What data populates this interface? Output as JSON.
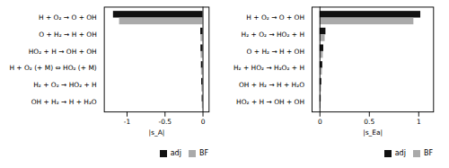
{
  "chart_data": [
    {
      "type": "bar",
      "orientation": "horizontal",
      "xlabel": "|s_A|",
      "categories": [
        "H + O₂ → O + OH",
        "O + H₂ → H + OH",
        "HO₂ + H → OH + OH",
        "H + O₂ (+ M) ⇔ HO₂ (+ M)",
        "H₂ + O₂ → HO₂ + H",
        "OH + H₂ → H + H₂O"
      ],
      "series": [
        {
          "name": "adj",
          "color": "#111111",
          "values": [
            -1.18,
            -0.03,
            -0.028,
            -0.022,
            -0.018,
            -0.012
          ]
        },
        {
          "name": "BF",
          "color": "#aaaaaa",
          "values": [
            -1.1,
            -0.027,
            -0.025,
            -0.02,
            -0.016,
            -0.01
          ]
        }
      ],
      "xlim": [
        -1.3,
        0.08
      ],
      "xticks": [
        -1,
        -0.5,
        0
      ],
      "grid": false,
      "legend": "lower right"
    },
    {
      "type": "bar",
      "orientation": "horizontal",
      "xlabel": "|s_Ea|",
      "categories": [
        "H + O₂ → O + OH",
        "H₂ + O₂ → HO₂ + H",
        "O + H₂ → H + OH",
        "H₂ + HO₂ → H₂O₂ + H",
        "OH + H₂ → H + H₂O",
        "HO₂ + H → OH + OH"
      ],
      "series": [
        {
          "name": "adj",
          "color": "#111111",
          "values": [
            1.02,
            0.06,
            0.038,
            0.028,
            0.018,
            0.012
          ]
        },
        {
          "name": "BF",
          "color": "#aaaaaa",
          "values": [
            0.95,
            0.052,
            0.033,
            0.024,
            0.015,
            0.01
          ]
        }
      ],
      "xlim": [
        -0.08,
        1.15
      ],
      "xticks": [
        0,
        0.5,
        1
      ],
      "grid": false,
      "legend": "lower right"
    }
  ]
}
